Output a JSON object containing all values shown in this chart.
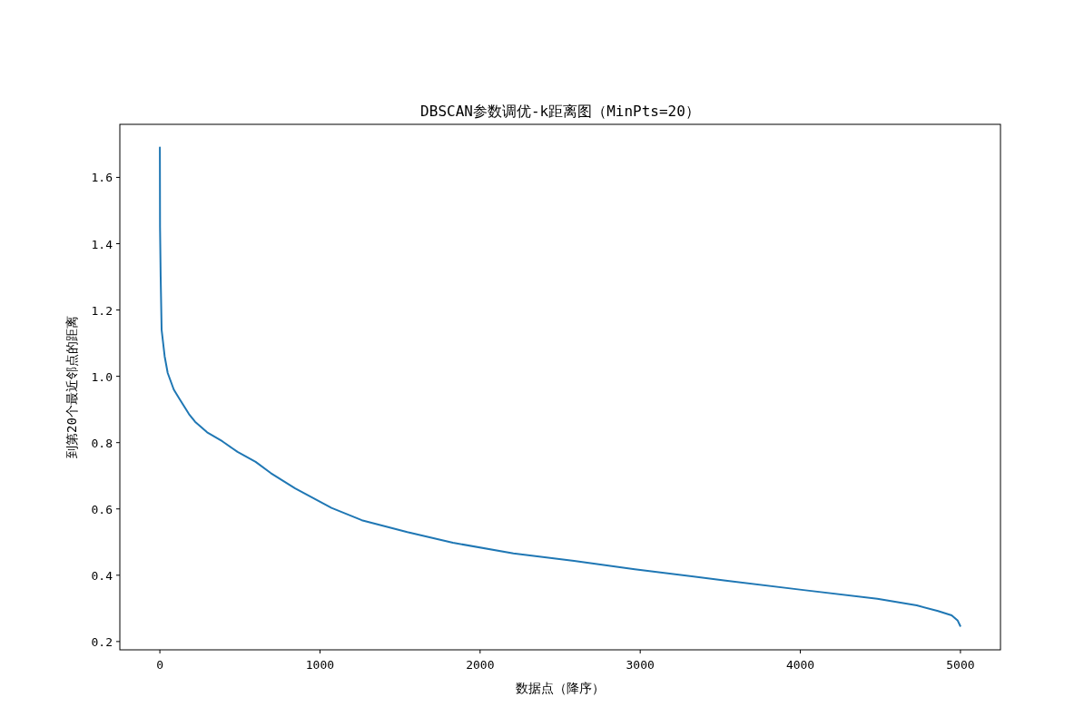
{
  "chart_data": {
    "type": "line",
    "title": "DBSCAN参数调优-k距离图（MinPts=20）",
    "xlabel": "数据点（降序）",
    "ylabel": "到第20个最近邻点的距离",
    "x": [
      0,
      1,
      5,
      11,
      30,
      49,
      87,
      125,
      182,
      220,
      295,
      390,
      485,
      598,
      693,
      845,
      1072,
      1261,
      1545,
      1830,
      2208,
      2587,
      2966,
      3534,
      4008,
      4481,
      4727,
      4860,
      4945,
      4983,
      4999
    ],
    "series": [
      {
        "color": "#1f77b4",
        "values": [
          1.69,
          1.45,
          1.3,
          1.14,
          1.06,
          1.01,
          0.96,
          0.93,
          0.886,
          0.863,
          0.831,
          0.804,
          0.772,
          0.742,
          0.708,
          0.662,
          0.603,
          0.566,
          0.53,
          0.498,
          0.466,
          0.443,
          0.418,
          0.384,
          0.356,
          0.329,
          0.309,
          0.292,
          0.279,
          0.263,
          0.247
        ]
      }
    ],
    "xlim": [
      -250,
      5250
    ],
    "ylim": [
      0.175,
      1.76
    ],
    "xticks": [
      0,
      1000,
      2000,
      3000,
      4000,
      5000
    ],
    "yticks": [
      {
        "value": 0.2,
        "label": "0.2"
      },
      {
        "value": 0.4,
        "label": "0.4"
      },
      {
        "value": 0.6,
        "label": "0.6"
      },
      {
        "value": 0.8,
        "label": "0.8"
      },
      {
        "value": 1.0,
        "label": "1.0"
      },
      {
        "value": 1.2,
        "label": "1.2"
      },
      {
        "value": 1.4,
        "label": "1.4"
      },
      {
        "value": 1.6,
        "label": "1.6"
      }
    ],
    "grid": false,
    "marker": "none",
    "line_style": "solid"
  }
}
